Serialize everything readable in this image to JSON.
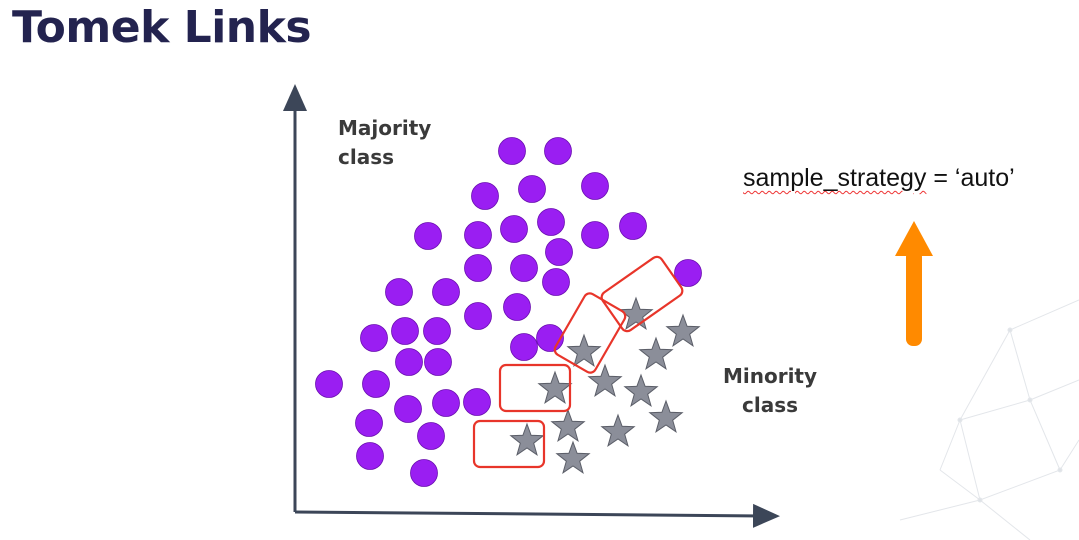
{
  "title": "Tomek Links",
  "labels": {
    "majority_line1": "Majority",
    "majority_line2": "class",
    "minority_line1": "Minority",
    "minority_line2": "class"
  },
  "parameter": {
    "text_left": "sample_strategy",
    "text_right": " = ‘auto’"
  },
  "colors": {
    "majority": "#9a1ef2",
    "minority": "#8b8e99",
    "tomek_box": "#e8352a",
    "arrow": "#ff8a00",
    "axis": "#3c4658",
    "title": "#23234f"
  }
}
